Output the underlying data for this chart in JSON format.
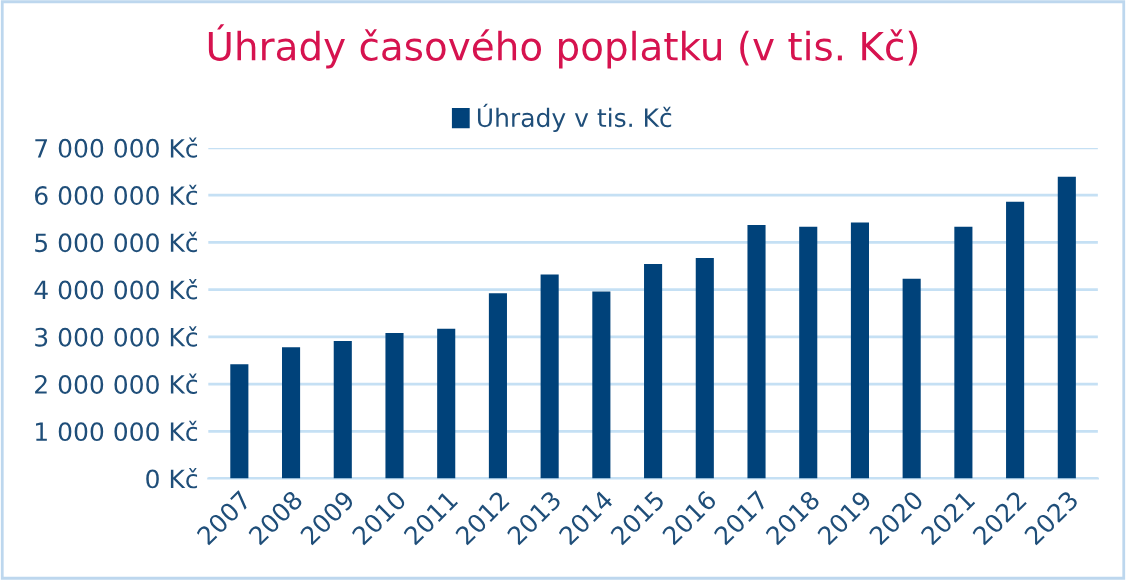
{
  "chart_data": {
    "type": "bar",
    "title": "Úhrady časového poplatku (v tis. Kč)",
    "categories": [
      "2007",
      "2008",
      "2009",
      "2010",
      "2011",
      "2012",
      "2013",
      "2014",
      "2015",
      "2016",
      "2017",
      "2018",
      "2019",
      "2020",
      "2021",
      "2022",
      "2023"
    ],
    "series": [
      {
        "name": "Úhrady v tis. Kč",
        "color": "#00427a",
        "values": [
          2420000,
          2780000,
          2910000,
          3080000,
          3170000,
          3920000,
          4320000,
          3960000,
          4540000,
          4670000,
          5370000,
          5330000,
          5420000,
          4230000,
          5330000,
          5860000,
          6390000
        ]
      }
    ],
    "ylim": [
      0,
      7000000
    ],
    "yticks": [
      {
        "value": 0,
        "label": "0 Kč"
      },
      {
        "value": 1000000,
        "label": "1 000 000 Kč"
      },
      {
        "value": 2000000,
        "label": "2 000 000 Kč"
      },
      {
        "value": 3000000,
        "label": "3 000 000 Kč"
      },
      {
        "value": 4000000,
        "label": "4 000 000 Kč"
      },
      {
        "value": 5000000,
        "label": "5 000 000 Kč"
      },
      {
        "value": 6000000,
        "label": "6 000 000 Kč"
      },
      {
        "value": 7000000,
        "label": "7 000 000 Kč"
      }
    ],
    "grid": "y",
    "legend": "top"
  }
}
